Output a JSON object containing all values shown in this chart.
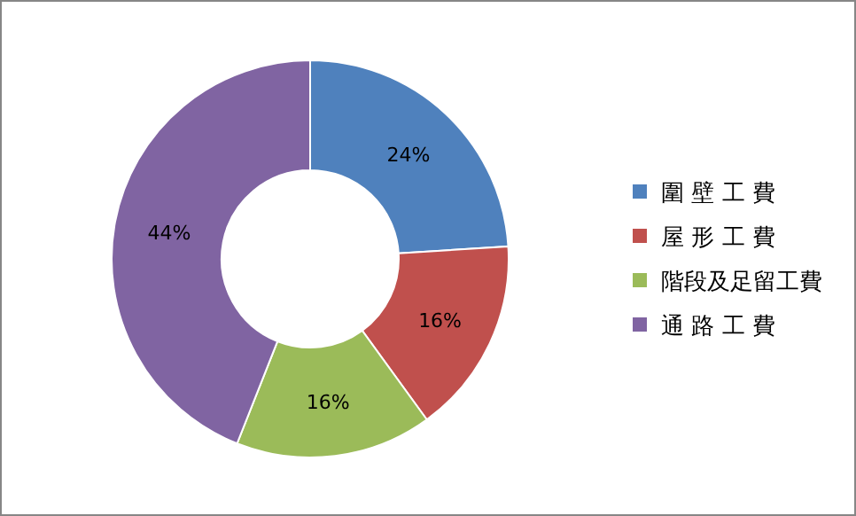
{
  "chart_data": {
    "type": "donut",
    "categories": [
      "圍 壁 工 費",
      "屋 形 工 費",
      "階段及足留工費",
      "通 路 工 費"
    ],
    "values": [
      24,
      16,
      16,
      44
    ],
    "colors": [
      "#4f81bd",
      "#c0504d",
      "#9bbb59",
      "#8064a2"
    ],
    "value_labels": [
      "24%",
      "16%",
      "16%",
      "44%"
    ],
    "legend": "right"
  }
}
